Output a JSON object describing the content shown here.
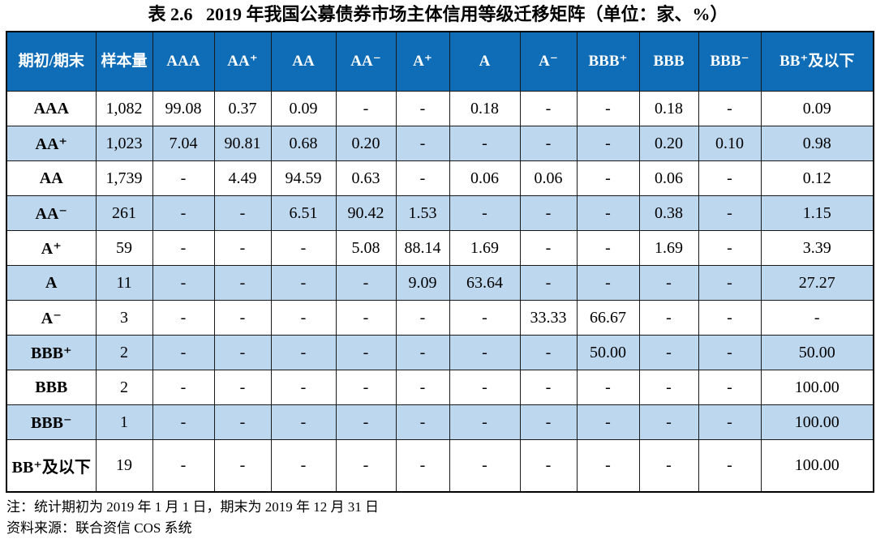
{
  "title": "表 2.6   2019 年我国公募债券市场主体信用等级迁移矩阵（单位：家、%）",
  "table": {
    "corner_header": "期初/期末",
    "headers": [
      "期初/期末",
      "样本量",
      "AAA",
      "AA⁺",
      "AA",
      "AA⁻",
      "A⁺",
      "A",
      "A⁻",
      "BBB⁺",
      "BBB",
      "BBB⁻",
      "BB⁺及以下"
    ],
    "rows": [
      {
        "label": "AAA",
        "sample": "1,082",
        "values": [
          "99.08",
          "0.37",
          "0.09",
          "-",
          "-",
          "0.18",
          "-",
          "-",
          "0.18",
          "-",
          "0.09"
        ]
      },
      {
        "label": "AA⁺",
        "sample": "1,023",
        "values": [
          "7.04",
          "90.81",
          "0.68",
          "0.20",
          "-",
          "-",
          "-",
          "-",
          "0.20",
          "0.10",
          "0.98"
        ]
      },
      {
        "label": "AA",
        "sample": "1,739",
        "values": [
          "-",
          "4.49",
          "94.59",
          "0.63",
          "-",
          "0.06",
          "0.06",
          "-",
          "0.06",
          "-",
          "0.12"
        ]
      },
      {
        "label": "AA⁻",
        "sample": "261",
        "values": [
          "-",
          "-",
          "6.51",
          "90.42",
          "1.53",
          "-",
          "-",
          "-",
          "0.38",
          "-",
          "1.15"
        ]
      },
      {
        "label": "A⁺",
        "sample": "59",
        "values": [
          "-",
          "-",
          "-",
          "5.08",
          "88.14",
          "1.69",
          "-",
          "-",
          "1.69",
          "-",
          "3.39"
        ]
      },
      {
        "label": "A",
        "sample": "11",
        "values": [
          "-",
          "-",
          "-",
          "-",
          "9.09",
          "63.64",
          "-",
          "-",
          "-",
          "-",
          "27.27"
        ]
      },
      {
        "label": "A⁻",
        "sample": "3",
        "values": [
          "-",
          "-",
          "-",
          "-",
          "-",
          "-",
          "33.33",
          "66.67",
          "-",
          "-",
          "-"
        ]
      },
      {
        "label": "BBB⁺",
        "sample": "2",
        "values": [
          "-",
          "-",
          "-",
          "-",
          "-",
          "-",
          "-",
          "50.00",
          "-",
          "-",
          "50.00"
        ]
      },
      {
        "label": "BBB",
        "sample": "2",
        "values": [
          "-",
          "-",
          "-",
          "-",
          "-",
          "-",
          "-",
          "-",
          "-",
          "-",
          "100.00"
        ]
      },
      {
        "label": "BBB⁻",
        "sample": "1",
        "values": [
          "-",
          "-",
          "-",
          "-",
          "-",
          "-",
          "-",
          "-",
          "-",
          "-",
          "100.00"
        ]
      },
      {
        "label": "BB⁺及以下",
        "sample": "19",
        "values": [
          "-",
          "-",
          "-",
          "-",
          "-",
          "-",
          "-",
          "-",
          "-",
          "-",
          "100.00"
        ]
      }
    ]
  },
  "notes": [
    "注：统计期初为 2019 年 1 月 1 日，期末为 2019 年 12 月 31 日",
    "资料来源：联合资信 COS 系统"
  ],
  "colors": {
    "header_bg": "#0f6cb6",
    "stripe_bg": "#bdd7ee",
    "border": "#1a1a1a",
    "header_text": "#ffffff"
  }
}
